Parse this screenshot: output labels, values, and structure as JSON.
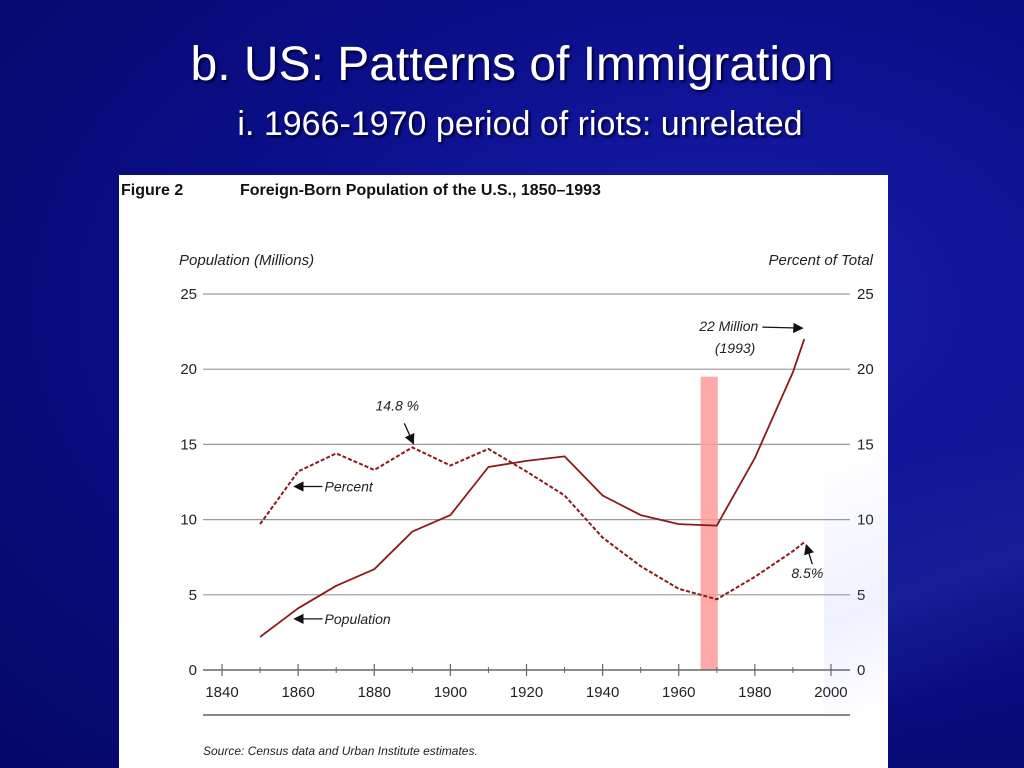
{
  "slide": {
    "title": "b. US: Patterns of Immigration",
    "subtitle": "i. 1966-1970 period of riots: unrelated"
  },
  "figure": {
    "label": "Figure 2",
    "title": "Foreign-Born Population of the U.S., 1850–1993",
    "source": "Source: Census data and Urban Institute estimates."
  },
  "colors": {
    "background": "#0b0f8a",
    "series_line": "#8b1a1a",
    "highlight_band": "#ff9a9a",
    "gridline": "#9a9a9a"
  },
  "chart_data": {
    "type": "line",
    "title": "Foreign-Born Population of the U.S., 1850–1993",
    "ylabel_left": "Population (Millions)",
    "ylabel_right": "Percent of Total",
    "xlim": [
      1835,
      2005
    ],
    "ylim": [
      0,
      25
    ],
    "x_ticks": [
      1840,
      1860,
      1880,
      1900,
      1920,
      1940,
      1960,
      1980,
      2000
    ],
    "y_ticks": [
      0,
      5,
      10,
      15,
      20,
      25
    ],
    "grid": true,
    "series": [
      {
        "name": "Population",
        "style": "solid",
        "x": [
          1850,
          1860,
          1870,
          1880,
          1890,
          1900,
          1910,
          1920,
          1930,
          1940,
          1950,
          1960,
          1970,
          1980,
          1990,
          1993
        ],
        "y": [
          2.2,
          4.1,
          5.6,
          6.7,
          9.2,
          10.3,
          13.5,
          13.9,
          14.2,
          11.6,
          10.3,
          9.7,
          9.6,
          14.1,
          19.8,
          22.0
        ]
      },
      {
        "name": "Percent",
        "style": "dashed",
        "x": [
          1850,
          1860,
          1870,
          1880,
          1890,
          1900,
          1910,
          1920,
          1930,
          1940,
          1950,
          1960,
          1970,
          1980,
          1990,
          1993
        ],
        "y": [
          9.7,
          13.2,
          14.4,
          13.3,
          14.8,
          13.6,
          14.7,
          13.2,
          11.6,
          8.8,
          6.9,
          5.4,
          4.7,
          6.2,
          7.9,
          8.5
        ]
      }
    ],
    "highlight": {
      "x_start": 1966,
      "x_end": 1970,
      "y_top": 19.5
    },
    "annotations": [
      {
        "text": "Percent",
        "target_x": 1858,
        "target_y": 12.2
      },
      {
        "text": "Population",
        "target_x": 1858,
        "target_y": 3.4
      },
      {
        "text": "14.8 %",
        "target_x": 1890,
        "target_y": 14.8
      },
      {
        "text": "8.5%",
        "target_x": 1993,
        "target_y": 8.5
      },
      {
        "text": "22 Million",
        "text2": "(1993)",
        "target_x": 1993,
        "target_y": 22.0
      }
    ]
  }
}
